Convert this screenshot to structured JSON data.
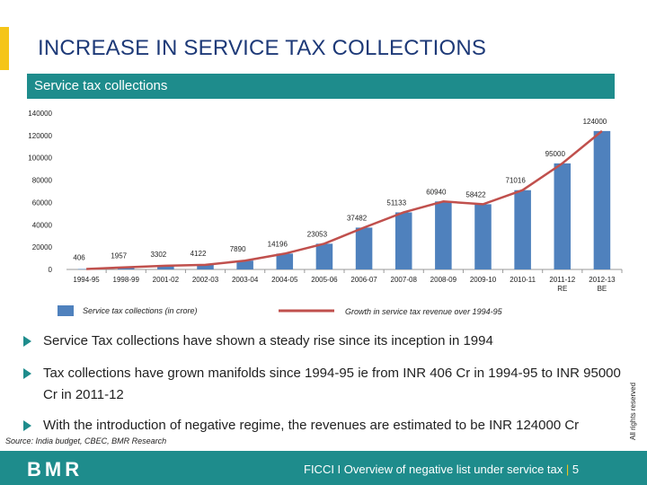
{
  "slide": {
    "title": "INCREASE IN SERVICE TAX COLLECTIONS",
    "band_label": "Service tax collections",
    "accent_color": "#f5c518",
    "brand_color": "#1e8c8c",
    "title_color": "#1e3a78"
  },
  "chart_data": {
    "type": "bar",
    "categories": [
      "1994-95",
      "1998-99",
      "2001-02",
      "2002-03",
      "2003-04",
      "2004-05",
      "2005-06",
      "2006-07",
      "2007-08",
      "2008-09",
      "2009-10",
      "2010-11",
      "2011-12 RE",
      "2012-13 BE"
    ],
    "series": [
      {
        "name": "Service tax collections (in crore)",
        "type": "bar",
        "color": "#4f81bd",
        "values": [
          406,
          1957,
          3302,
          4122,
          7890,
          14196,
          23053,
          37482,
          51133,
          60940,
          58422,
          71016,
          95000,
          124000
        ]
      },
      {
        "name": "Growth in service tax revenue over 1994-95",
        "type": "line",
        "color": "#c0504d",
        "values": [
          406,
          1957,
          3302,
          4122,
          7890,
          14196,
          23053,
          37482,
          51133,
          60940,
          58422,
          71016,
          95000,
          124000
        ]
      }
    ],
    "data_labels": [
      "406",
      "1957",
      "3302",
      "4122",
      "7890",
      "14196",
      "23053",
      "37482",
      "51133",
      "60940",
      "58422",
      "71016",
      "95000",
      "124000"
    ],
    "y_ticks": [
      "0",
      "20000",
      "40000",
      "60000",
      "80000",
      "100000",
      "120000",
      "140000"
    ],
    "ylim": [
      0,
      140000
    ],
    "grid": false,
    "legend_position": "bottom"
  },
  "bullets": [
    "Service Tax collections have shown a steady rise since its inception in 1994",
    "Tax collections have grown manifolds since 1994-95 ie from INR 406 Cr in 1994-95 to INR 95000  Cr in 2011-12",
    " With the introduction of negative regime, the revenues are estimated to be INR 124000 Cr"
  ],
  "source": "Source: India budget, CBEC, BMR Research",
  "rights": "All rights reserved",
  "footer": {
    "logo": "BMR",
    "text": "FICCI I Overview of negative list under service tax",
    "separator": "|",
    "page_number": "5"
  }
}
